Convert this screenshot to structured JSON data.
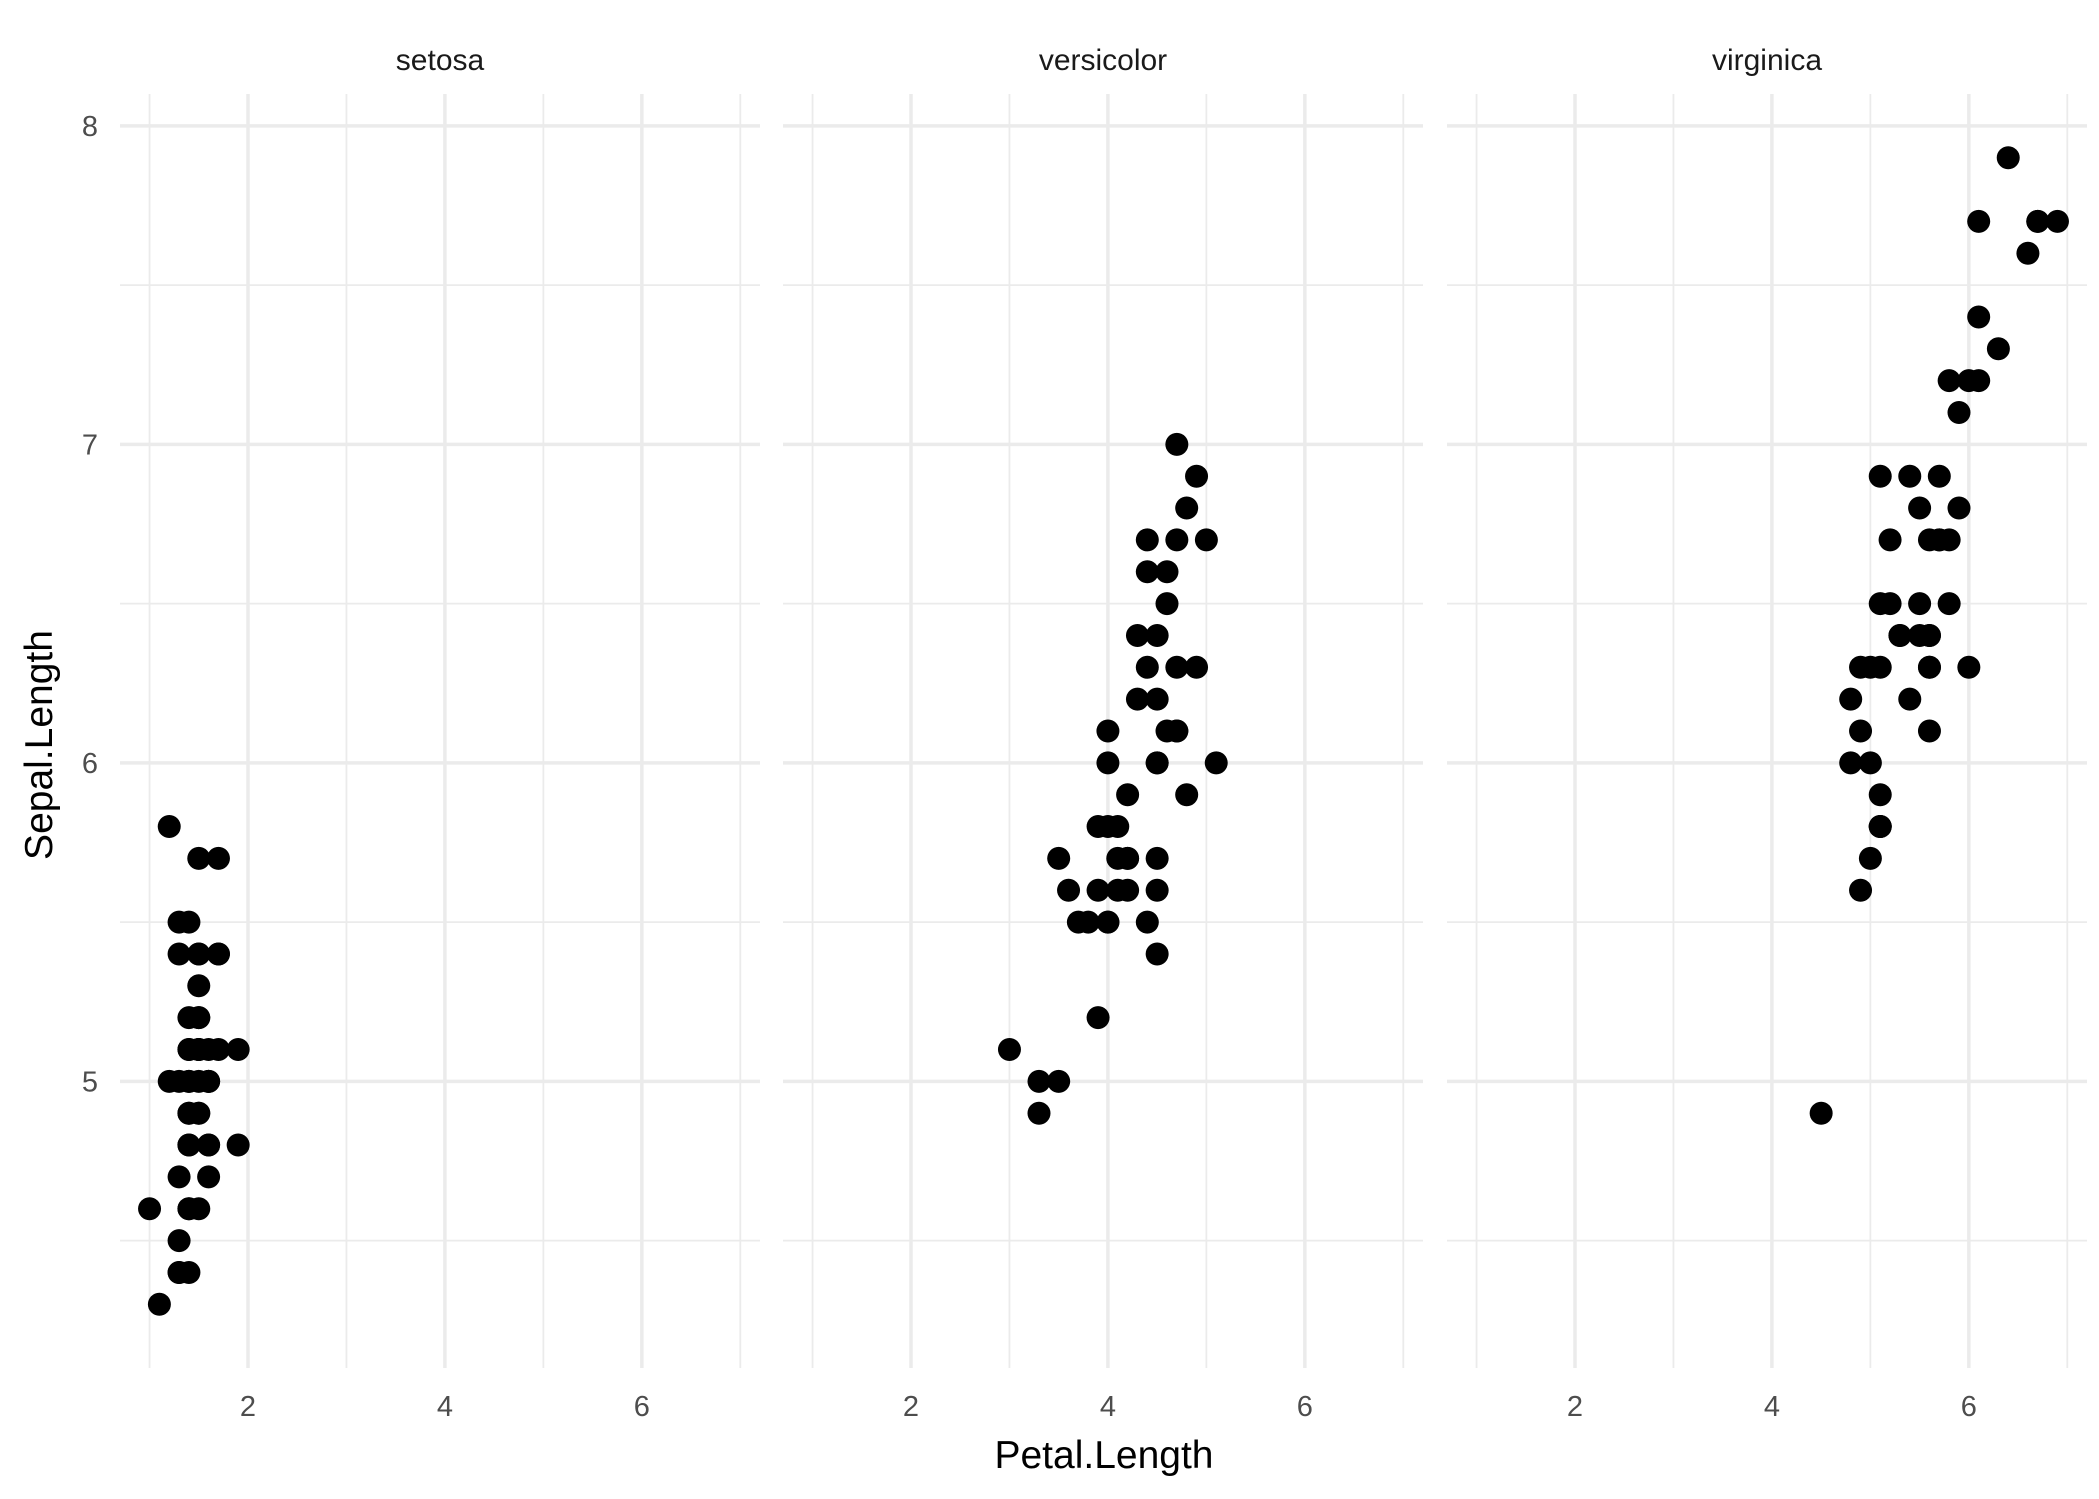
{
  "chart_data": {
    "type": "scatter",
    "facet_by": "Species",
    "xlabel": "Petal.Length",
    "ylabel": "Sepal.Length",
    "xlim": [
      0.7,
      7.2
    ],
    "ylim": [
      4.1,
      8.1
    ],
    "x_ticks": [
      2,
      4,
      6
    ],
    "x_minor_ticks": [
      1,
      3,
      5,
      7
    ],
    "y_ticks": [
      5,
      6,
      7,
      8
    ],
    "y_minor_ticks": [
      4.5,
      5.5,
      6.5,
      7.5
    ],
    "grid": true,
    "legend": "none",
    "point_color": "#000000",
    "panels": [
      {
        "label": "setosa",
        "points": [
          [
            1.4,
            5.1
          ],
          [
            1.4,
            4.9
          ],
          [
            1.3,
            4.7
          ],
          [
            1.5,
            4.6
          ],
          [
            1.4,
            5.0
          ],
          [
            1.7,
            5.4
          ],
          [
            1.4,
            4.6
          ],
          [
            1.5,
            5.0
          ],
          [
            1.4,
            4.4
          ],
          [
            1.5,
            4.9
          ],
          [
            1.5,
            5.4
          ],
          [
            1.6,
            4.8
          ],
          [
            1.4,
            4.8
          ],
          [
            1.1,
            4.3
          ],
          [
            1.2,
            5.8
          ],
          [
            1.5,
            5.7
          ],
          [
            1.3,
            5.4
          ],
          [
            1.4,
            5.1
          ],
          [
            1.7,
            5.7
          ],
          [
            1.5,
            5.1
          ],
          [
            1.7,
            5.4
          ],
          [
            1.5,
            5.1
          ],
          [
            1.0,
            4.6
          ],
          [
            1.7,
            5.1
          ],
          [
            1.9,
            4.8
          ],
          [
            1.6,
            5.0
          ],
          [
            1.6,
            5.0
          ],
          [
            1.5,
            5.2
          ],
          [
            1.4,
            5.2
          ],
          [
            1.6,
            4.7
          ],
          [
            1.6,
            4.8
          ],
          [
            1.5,
            5.4
          ],
          [
            1.5,
            5.2
          ],
          [
            1.4,
            5.5
          ],
          [
            1.5,
            4.9
          ],
          [
            1.2,
            5.0
          ],
          [
            1.3,
            5.5
          ],
          [
            1.4,
            4.9
          ],
          [
            1.3,
            4.4
          ],
          [
            1.5,
            5.1
          ],
          [
            1.3,
            5.0
          ],
          [
            1.3,
            4.5
          ],
          [
            1.3,
            4.4
          ],
          [
            1.6,
            5.0
          ],
          [
            1.9,
            5.1
          ],
          [
            1.4,
            4.8
          ],
          [
            1.6,
            5.1
          ],
          [
            1.4,
            4.6
          ],
          [
            1.5,
            5.3
          ],
          [
            1.4,
            5.0
          ]
        ]
      },
      {
        "label": "versicolor",
        "points": [
          [
            4.7,
            7.0
          ],
          [
            4.5,
            6.4
          ],
          [
            4.9,
            6.9
          ],
          [
            4.0,
            5.5
          ],
          [
            4.6,
            6.5
          ],
          [
            4.5,
            5.7
          ],
          [
            4.7,
            6.3
          ],
          [
            3.3,
            4.9
          ],
          [
            4.6,
            6.6
          ],
          [
            3.9,
            5.2
          ],
          [
            3.5,
            5.0
          ],
          [
            4.2,
            5.9
          ],
          [
            4.0,
            6.0
          ],
          [
            4.7,
            6.1
          ],
          [
            3.6,
            5.6
          ],
          [
            4.4,
            6.7
          ],
          [
            4.5,
            5.6
          ],
          [
            4.1,
            5.8
          ],
          [
            4.5,
            6.2
          ],
          [
            3.9,
            5.6
          ],
          [
            4.8,
            5.9
          ],
          [
            4.0,
            6.1
          ],
          [
            4.9,
            6.3
          ],
          [
            4.7,
            6.1
          ],
          [
            4.3,
            6.4
          ],
          [
            4.4,
            6.6
          ],
          [
            4.8,
            6.8
          ],
          [
            5.0,
            6.7
          ],
          [
            4.5,
            6.0
          ],
          [
            3.5,
            5.7
          ],
          [
            3.8,
            5.5
          ],
          [
            3.7,
            5.5
          ],
          [
            3.9,
            5.8
          ],
          [
            5.1,
            6.0
          ],
          [
            4.5,
            5.4
          ],
          [
            4.5,
            6.0
          ],
          [
            4.7,
            6.7
          ],
          [
            4.4,
            6.3
          ],
          [
            4.1,
            5.6
          ],
          [
            4.0,
            5.5
          ],
          [
            4.4,
            5.5
          ],
          [
            4.6,
            6.1
          ],
          [
            4.0,
            5.8
          ],
          [
            3.3,
            5.0
          ],
          [
            4.2,
            5.6
          ],
          [
            4.2,
            5.7
          ],
          [
            4.2,
            5.7
          ],
          [
            4.3,
            6.2
          ],
          [
            3.0,
            5.1
          ],
          [
            4.1,
            5.7
          ]
        ]
      },
      {
        "label": "virginica",
        "points": [
          [
            6.0,
            6.3
          ],
          [
            5.1,
            5.8
          ],
          [
            5.9,
            7.1
          ],
          [
            5.6,
            6.3
          ],
          [
            5.8,
            6.5
          ],
          [
            6.6,
            7.6
          ],
          [
            4.5,
            4.9
          ],
          [
            6.3,
            7.3
          ],
          [
            5.8,
            6.7
          ],
          [
            6.1,
            7.2
          ],
          [
            5.1,
            6.5
          ],
          [
            5.3,
            6.4
          ],
          [
            5.5,
            6.8
          ],
          [
            5.0,
            5.7
          ],
          [
            5.1,
            5.8
          ],
          [
            5.3,
            6.4
          ],
          [
            5.5,
            6.5
          ],
          [
            6.7,
            7.7
          ],
          [
            6.9,
            7.7
          ],
          [
            5.0,
            6.0
          ],
          [
            5.7,
            6.9
          ],
          [
            4.9,
            5.6
          ],
          [
            6.7,
            7.7
          ],
          [
            4.9,
            6.3
          ],
          [
            5.7,
            6.7
          ],
          [
            6.0,
            7.2
          ],
          [
            4.8,
            6.2
          ],
          [
            4.9,
            6.1
          ],
          [
            5.6,
            6.4
          ],
          [
            5.8,
            7.2
          ],
          [
            6.1,
            7.4
          ],
          [
            6.4,
            7.9
          ],
          [
            5.6,
            6.4
          ],
          [
            5.1,
            6.3
          ],
          [
            5.6,
            6.1
          ],
          [
            6.1,
            7.7
          ],
          [
            5.6,
            6.3
          ],
          [
            5.5,
            6.4
          ],
          [
            4.8,
            6.0
          ],
          [
            5.4,
            6.9
          ],
          [
            5.6,
            6.7
          ],
          [
            5.1,
            6.9
          ],
          [
            5.1,
            5.8
          ],
          [
            5.9,
            6.8
          ],
          [
            5.7,
            6.7
          ],
          [
            5.2,
            6.7
          ],
          [
            5.0,
            6.3
          ],
          [
            5.2,
            6.5
          ],
          [
            5.4,
            6.2
          ],
          [
            5.1,
            5.9
          ]
        ]
      }
    ]
  }
}
